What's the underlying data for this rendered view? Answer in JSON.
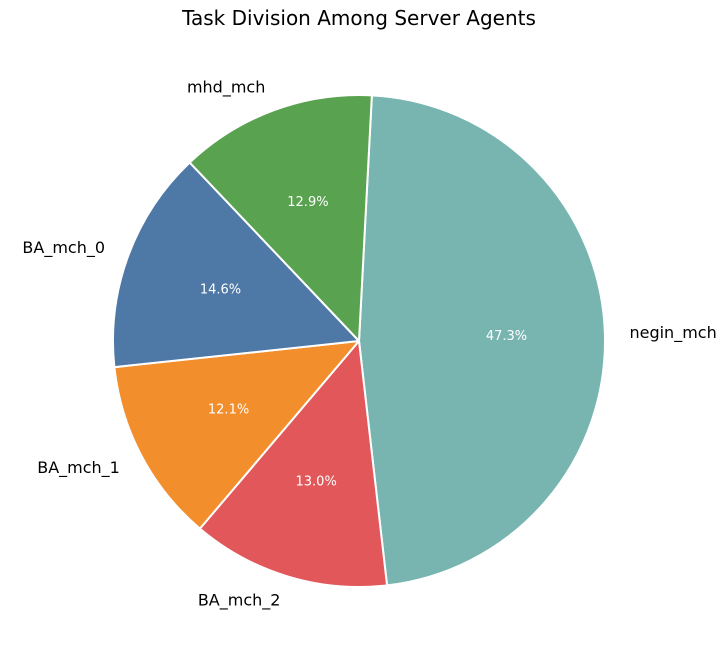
{
  "chart_data": {
    "type": "pie",
    "title": "Task Division Among Server Agents",
    "slices": [
      {
        "label": "negin_mch",
        "value": 47.3,
        "pct_label": "47.3%",
        "color": "#78b5b0"
      },
      {
        "label": "BA_mch_2",
        "value": 13.0,
        "pct_label": "13.0%",
        "color": "#e1575a"
      },
      {
        "label": "BA_mch_1",
        "value": 12.1,
        "pct_label": "12.1%",
        "color": "#f28e2c"
      },
      {
        "label": "BA_mch_0",
        "value": 14.6,
        "pct_label": "14.6%",
        "color": "#4e78a6"
      },
      {
        "label": "mhd_mch",
        "value": 12.9,
        "pct_label": "12.9%",
        "color": "#59a24f"
      }
    ],
    "start_angle_deg": 87,
    "direction": "clockwise",
    "edge_color": "#ffffff"
  }
}
